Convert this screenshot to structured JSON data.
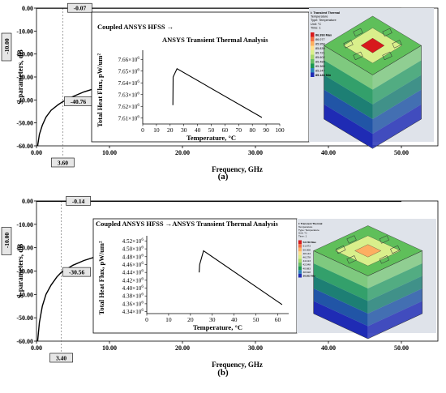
{
  "chart_data": [
    {
      "id": "a",
      "type": "line",
      "caption": "(a)",
      "xlabel": "Frequency, GHz",
      "ylabel": "S-parameters, dB",
      "xlim": [
        0,
        55
      ],
      "ylim": [
        -60,
        0
      ],
      "xticks": [
        "0.00",
        "10.00",
        "20.00",
        "30.00",
        "40.00",
        "50.00"
      ],
      "yticks": [
        "0.00",
        "-10.00",
        "-20.00",
        "-30.00",
        "-40.00",
        "-50.00",
        "-60.00"
      ],
      "ymarker": "-10.00",
      "xmarker": "3.60",
      "markers": [
        {
          "label": "-0.07"
        },
        {
          "label": "-40.76"
        }
      ],
      "series": [
        {
          "role": "top",
          "x": [
            0,
            3.6,
            10,
            20,
            30,
            40,
            50
          ],
          "y": [
            -0.07,
            -0.07,
            -0.07,
            -0.08,
            -0.08,
            -0.09,
            -0.1
          ]
        },
        {
          "role": "bottom",
          "x": [
            0.15,
            0.4,
            0.8,
            1.3,
            2.0,
            3.0,
            3.6,
            5.0,
            6.5,
            8.0,
            9.0
          ],
          "y": [
            -60,
            -55,
            -51,
            -47.5,
            -44.5,
            -42,
            -40.76,
            -38.5,
            -36.5,
            -35,
            -34
          ]
        }
      ],
      "inset": {
        "title": "Coupled ANSYS HFSS →",
        "subtitle": "ANSYS Transient Thermal Analysis",
        "xlabel": "Temperature, °C",
        "ylabel": "Total Heat Flux, pW/um²",
        "xlim": [
          0,
          100
        ],
        "ylim": [
          7.605,
          7.665
        ],
        "xticks": [
          "0",
          "10",
          "20",
          "30",
          "40",
          "50",
          "60",
          "70",
          "80",
          "90",
          "100"
        ],
        "yticks": [
          {
            "label": "7.66×10",
            "exp": "6"
          },
          {
            "label": "7.65×10",
            "exp": "6"
          },
          {
            "label": "7.64×10",
            "exp": "6"
          },
          {
            "label": "7.63×10",
            "exp": "6"
          },
          {
            "label": "7.62×10",
            "exp": "6"
          },
          {
            "label": "7.61×10",
            "exp": "6"
          }
        ],
        "series": {
          "x": [
            22,
            22.2,
            25,
            87
          ],
          "y": [
            7.621,
            7.645,
            7.652,
            7.6105
          ]
        }
      },
      "thermal_legend": {
        "title": "I: Transient Thermal",
        "lines": [
          "Temperature",
          "Type: Temperature",
          "Unit: °C",
          "Time: 1"
        ],
        "values": [
          "86.393 Max",
          "86.077",
          "85.958",
          "85.839",
          "85.721",
          "85.602",
          "85.484",
          "85.365",
          "85.247",
          "85.128 Min"
        ],
        "colors": [
          "#d7191c",
          "#f46d43",
          "#fdae61",
          "#fee08b",
          "#d9ef8b",
          "#a6d96a",
          "#66bd63",
          "#1a9850",
          "#2b83ba",
          "#1f2bb4"
        ]
      }
    },
    {
      "id": "b",
      "type": "line",
      "caption": "(b)",
      "xlabel": "Frequency, GHz",
      "ylabel": "S-parameters, dB",
      "xlim": [
        0,
        55
      ],
      "ylim": [
        -60,
        0
      ],
      "xticks": [
        "0.00",
        "10.00",
        "20.00",
        "30.00",
        "40.00",
        "50.00"
      ],
      "yticks": [
        "0.00",
        "-10.00",
        "-20.00",
        "-30.00",
        "-40.00",
        "-50.00",
        "-60.00"
      ],
      "ymarker": "-10.00",
      "xmarker": "3.40",
      "markers": [
        {
          "label": "-0.14"
        },
        {
          "label": "-30.56"
        }
      ],
      "series": [
        {
          "role": "top",
          "x": [
            0,
            3.4,
            10,
            20,
            30,
            40,
            50
          ],
          "y": [
            -0.14,
            -0.14,
            -0.15,
            -0.16,
            -0.17,
            -0.18,
            -0.19
          ]
        },
        {
          "role": "bottom",
          "x": [
            0.15,
            0.4,
            0.8,
            1.3,
            2.0,
            2.8,
            3.4,
            5.0,
            6.5,
            8.0,
            9.5
          ],
          "y": [
            -60,
            -52,
            -45,
            -40,
            -36,
            -32.5,
            -30.56,
            -27.5,
            -25.5,
            -24,
            -23
          ]
        }
      ],
      "inset": {
        "title": "Coupled ANSYS HFSS →ANSYS Transient Thermal Analysis",
        "subtitle": "",
        "xlabel": "Temperature, °C",
        "ylabel": "Total Heat Flux, pW/um²",
        "xlim": [
          0,
          65
        ],
        "ylim": [
          4.335,
          4.525
        ],
        "xticks": [
          "0",
          "10",
          "20",
          "30",
          "40",
          "50",
          "60"
        ],
        "yticks": [
          {
            "label": "4.52×10",
            "exp": "6"
          },
          {
            "label": "4.50×10",
            "exp": "6"
          },
          {
            "label": "4.48×10",
            "exp": "6"
          },
          {
            "label": "4.46×10",
            "exp": "6"
          },
          {
            "label": "4.44×10",
            "exp": "6"
          },
          {
            "label": "4.42×10",
            "exp": "6"
          },
          {
            "label": "4.40×10",
            "exp": "6"
          },
          {
            "label": "4.38×10",
            "exp": "6"
          },
          {
            "label": "4.36×10",
            "exp": "6"
          },
          {
            "label": "4.34×10",
            "exp": "6"
          }
        ],
        "series": {
          "x": [
            24,
            24.2,
            26,
            62
          ],
          "y": [
            4.44,
            4.46,
            4.495,
            4.358
          ]
        }
      },
      "thermal_legend": {
        "title": "I: Transient Thermal",
        "lines": [
          "Temperature",
          "Type: Temperature",
          "Unit: °C",
          "Time: 1"
        ],
        "values": [
          "53.738 Max",
          "51.873",
          "50.008",
          "48.143",
          "46.278",
          "44.413",
          "42.548",
          "40.683",
          "38.818",
          "36.952 Min"
        ],
        "colors": [
          "#d7191c",
          "#f46d43",
          "#fdae61",
          "#fee08b",
          "#d9ef8b",
          "#a6d96a",
          "#66bd63",
          "#1a9850",
          "#2b83ba",
          "#1f2bb4"
        ]
      }
    }
  ]
}
